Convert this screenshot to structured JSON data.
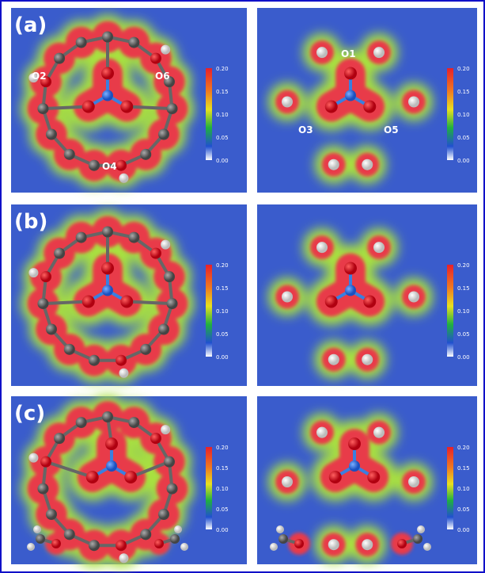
{
  "panels": {
    "labels": [
      "(a)",
      "(b)",
      "(c)"
    ]
  },
  "atoms": {
    "left": [
      "O2",
      "O6",
      "O4"
    ],
    "right": [
      "O1",
      "O3",
      "O5"
    ]
  },
  "colorbar": {
    "ticks": [
      "0.20",
      "0.15",
      "0.10",
      "0.05",
      "0.00"
    ]
  }
}
